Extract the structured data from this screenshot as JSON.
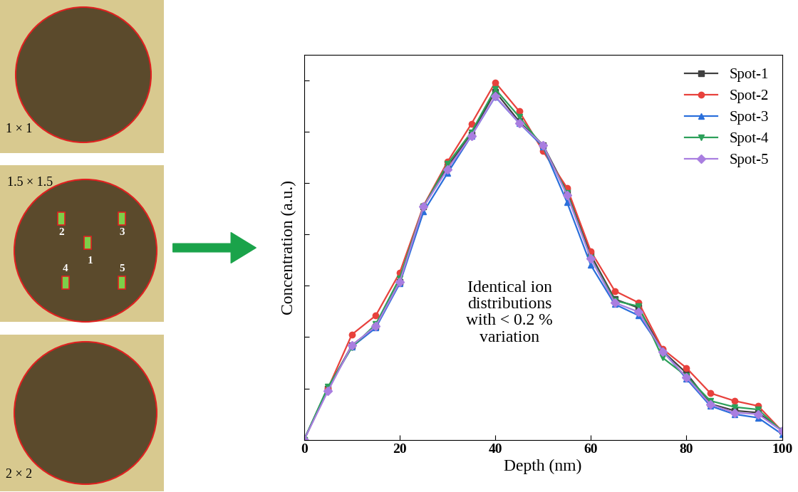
{
  "samples": {
    "labels": [
      "1 × 1",
      "1.5 × 1.5",
      "2 × 2"
    ],
    "spot_labels": [
      "1",
      "2",
      "3",
      "4",
      "5"
    ]
  },
  "chart_data": {
    "type": "line",
    "xlabel": "Depth (nm)",
    "ylabel": "Concentration (a.u.)",
    "annotation": "Identical ion\ndistributions\nwith < 0.2 %\nvariation",
    "x": [
      0,
      5,
      10,
      15,
      20,
      25,
      30,
      35,
      40,
      45,
      50,
      55,
      60,
      65,
      70,
      75,
      80,
      85,
      90,
      95,
      100
    ],
    "series": [
      {
        "name": "Spot-1",
        "color": "#404040",
        "marker": "square",
        "values": [
          0,
          1.0,
          1.84,
          2.2,
          3.08,
          4.54,
          5.32,
          5.95,
          6.78,
          6.2,
          5.74,
          4.84,
          3.6,
          2.74,
          2.57,
          1.73,
          1.3,
          0.7,
          0.57,
          0.53,
          0.18
        ]
      },
      {
        "name": "Spot-2",
        "color": "#e8413c",
        "marker": "circle",
        "values": [
          0,
          1.0,
          2.05,
          2.42,
          3.25,
          4.56,
          5.41,
          6.15,
          6.96,
          6.4,
          5.62,
          4.91,
          3.67,
          2.9,
          2.67,
          1.77,
          1.4,
          0.91,
          0.76,
          0.66,
          0.17
        ]
      },
      {
        "name": "Spot-3",
        "color": "#2a6fdb",
        "marker": "triangle_up",
        "values": [
          0,
          1.0,
          1.81,
          2.18,
          3.04,
          4.44,
          5.19,
          5.92,
          6.68,
          6.17,
          5.71,
          4.63,
          3.4,
          2.64,
          2.42,
          1.74,
          1.19,
          0.66,
          0.5,
          0.43,
          0.11
        ]
      },
      {
        "name": "Spot-4",
        "color": "#2ca05a",
        "marker": "triangle_down",
        "values": [
          0,
          1.03,
          1.8,
          2.25,
          3.15,
          4.54,
          5.37,
          5.99,
          6.83,
          6.29,
          5.71,
          4.81,
          3.54,
          2.71,
          2.6,
          1.6,
          1.24,
          0.76,
          0.64,
          0.59,
          0.17
        ]
      },
      {
        "name": "Spot-5",
        "color": "#a97ee0",
        "marker": "diamond",
        "values": [
          0,
          0.95,
          1.84,
          2.21,
          3.07,
          4.54,
          5.27,
          5.92,
          6.69,
          6.17,
          5.74,
          4.77,
          3.53,
          2.67,
          2.49,
          1.72,
          1.22,
          0.69,
          0.53,
          0.5,
          0.17
        ]
      }
    ],
    "xlim": [
      0,
      100
    ],
    "ylim": [
      0,
      7.5
    ],
    "xticks": [
      0,
      20,
      40,
      60,
      80,
      100
    ],
    "yticks": [
      0,
      1,
      2,
      3,
      4,
      5,
      6,
      7
    ],
    "tick_labels": "x",
    "legend": "upper right",
    "grid": false
  }
}
